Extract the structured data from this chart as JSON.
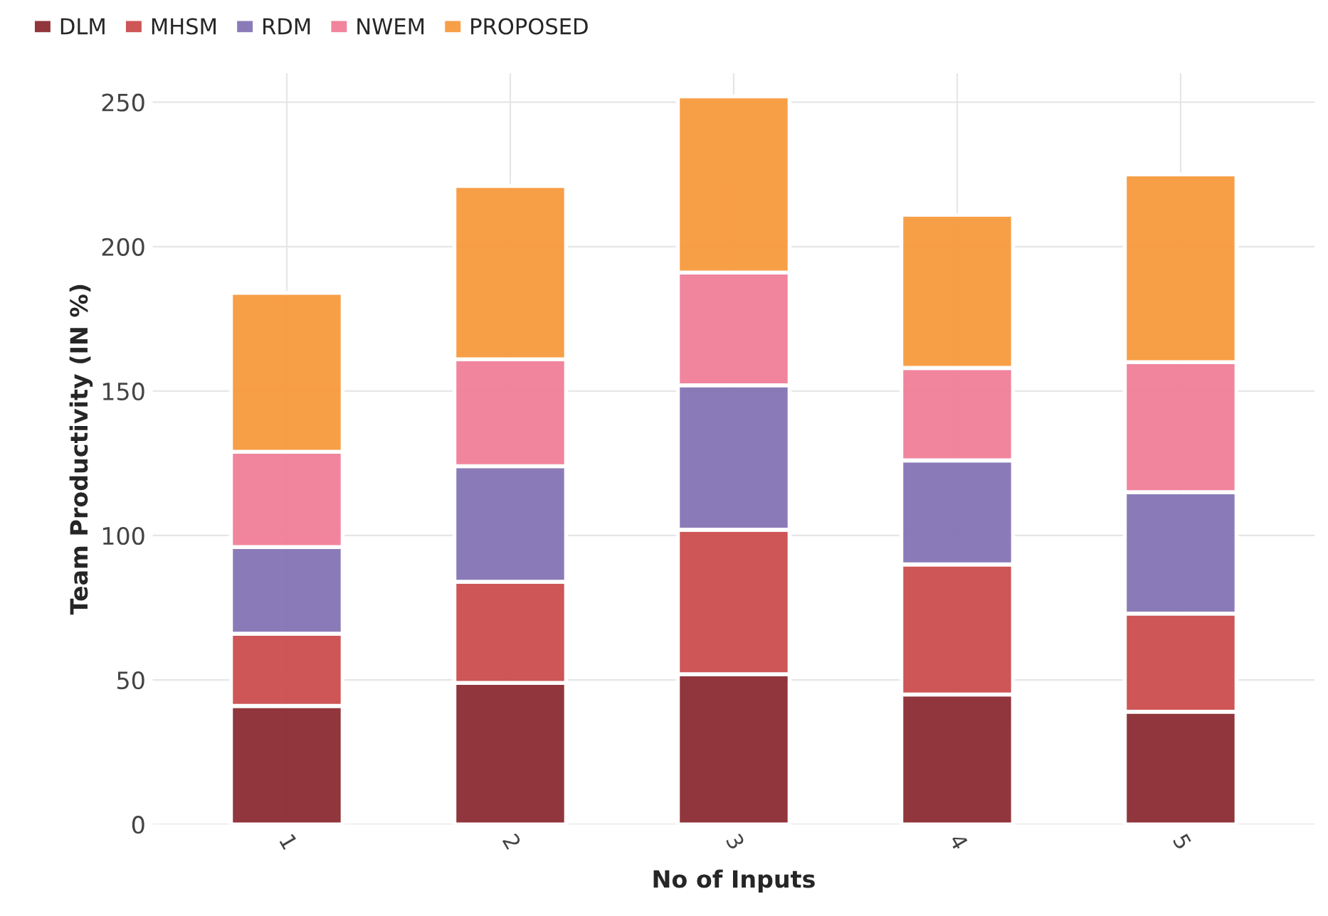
{
  "chart_data": {
    "type": "bar",
    "stacked": true,
    "xlabel": "No of Inputs",
    "ylabel": "Team Productivity (IN %)",
    "categories": [
      "1",
      "2",
      "3",
      "4",
      "5"
    ],
    "series": [
      {
        "name": "DLM",
        "color": "#8b2c32",
        "values": [
          41,
          49,
          52,
          45,
          39
        ]
      },
      {
        "name": "MHSM",
        "color": "#cc4e4e",
        "values": [
          25,
          35,
          50,
          45,
          34
        ]
      },
      {
        "name": "RDM",
        "color": "#8474b5",
        "values": [
          30,
          40,
          50,
          36,
          42
        ]
      },
      {
        "name": "NWEM",
        "color": "#f07f98",
        "values": [
          33,
          37,
          39,
          32,
          45
        ]
      },
      {
        "name": "PROPOSED",
        "color": "#f79a3e",
        "values": [
          55,
          60,
          61,
          53,
          65
        ]
      }
    ],
    "ylim": [
      0,
      260
    ],
    "yticks": [
      0,
      50,
      100,
      150,
      200,
      250
    ],
    "grid": true,
    "legend": "top left"
  }
}
